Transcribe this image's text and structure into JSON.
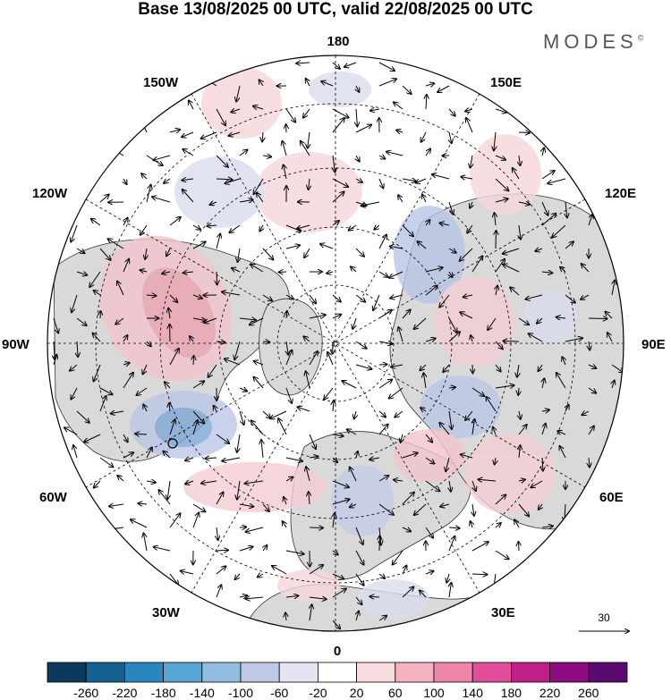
{
  "title": "Base 13/08/2025 00 UTC, valid 22/08/2025 00 UTC",
  "logo": {
    "text": "MODES",
    "mark": "©"
  },
  "longitude_labels": {
    "top": "180",
    "bottom": "0",
    "left": "90W",
    "right": "90E",
    "upper_left": "150W",
    "upper_right": "150E",
    "mid_upper_left": "120W",
    "mid_upper_right": "120E",
    "lower_left_a": "60W",
    "lower_right_a": "60E",
    "lower_left_b": "30W",
    "lower_right_b": "30E"
  },
  "vector_reference": {
    "value": "30"
  },
  "colorbar": {
    "labels": [
      "-260",
      "-220",
      "-180",
      "-140",
      "-100",
      "-60",
      "-20",
      "20",
      "60",
      "100",
      "140",
      "180",
      "220",
      "260"
    ],
    "colors": [
      "#0c3a5c",
      "#15608f",
      "#2b86bd",
      "#58a6d4",
      "#93bde0",
      "#bfcbe6",
      "#e6e4f2",
      "#ffffff",
      "#f8dcdf",
      "#f3b3bf",
      "#ef86aa",
      "#e04e9a",
      "#c01f8a",
      "#8e0c7e",
      "#5a0a6e"
    ]
  },
  "anomaly_colors": {
    "land": "#d9d9d9",
    "blue_light": "#d6d9ec",
    "blue_mid": "#9bb4dc",
    "blue_strong": "#5f94cc",
    "red_light": "#f6d6da",
    "red_mid": "#eeb3bd",
    "coast": "#333333"
  }
}
